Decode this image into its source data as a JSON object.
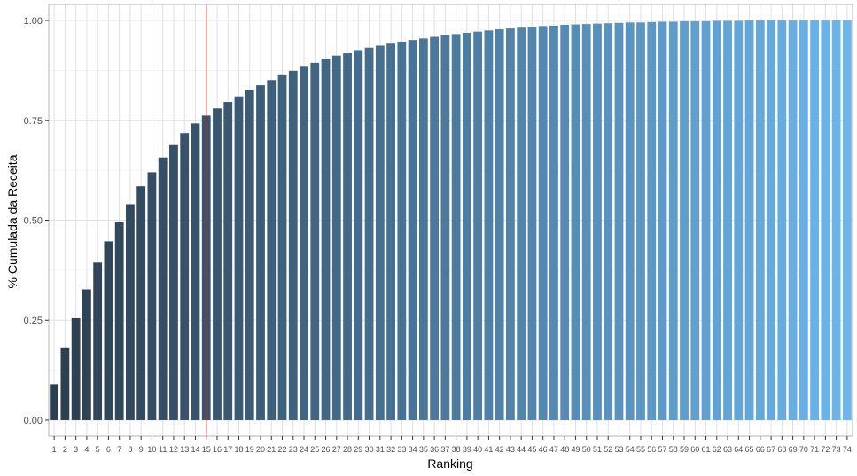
{
  "chart_data": {
    "type": "bar",
    "xlabel": "Ranking",
    "ylabel": "% Cumulada da Receita",
    "ylim": [
      -0.04,
      1.04
    ],
    "yticks": [
      0.0,
      0.25,
      0.5,
      0.75,
      1.0
    ],
    "ytick_labels": [
      "0.00",
      "0.25",
      "0.50",
      "0.75",
      "1.00"
    ],
    "categories": [
      "1",
      "2",
      "3",
      "4",
      "5",
      "6",
      "7",
      "8",
      "9",
      "10",
      "11",
      "12",
      "13",
      "14",
      "15",
      "16",
      "17",
      "18",
      "19",
      "20",
      "21",
      "22",
      "23",
      "24",
      "25",
      "26",
      "27",
      "28",
      "29",
      "30",
      "31",
      "32",
      "33",
      "34",
      "35",
      "36",
      "37",
      "38",
      "39",
      "40",
      "41",
      "42",
      "43",
      "44",
      "45",
      "46",
      "47",
      "48",
      "49",
      "50",
      "51",
      "52",
      "53",
      "54",
      "55",
      "56",
      "57",
      "58",
      "59",
      "60",
      "61",
      "62",
      "63",
      "64",
      "65",
      "66",
      "67",
      "68",
      "69",
      "70",
      "71",
      "72",
      "73",
      "74"
    ],
    "values": [
      0.09,
      0.18,
      0.255,
      0.327,
      0.394,
      0.447,
      0.495,
      0.54,
      0.585,
      0.62,
      0.657,
      0.688,
      0.718,
      0.742,
      0.762,
      0.78,
      0.796,
      0.81,
      0.825,
      0.838,
      0.851,
      0.863,
      0.874,
      0.884,
      0.894,
      0.904,
      0.912,
      0.918,
      0.926,
      0.932,
      0.937,
      0.942,
      0.947,
      0.951,
      0.955,
      0.959,
      0.963,
      0.966,
      0.969,
      0.972,
      0.975,
      0.978,
      0.98,
      0.982,
      0.984,
      0.986,
      0.987,
      0.989,
      0.99,
      0.991,
      0.992,
      0.993,
      0.994,
      0.995,
      0.995,
      0.996,
      0.997,
      0.997,
      0.998,
      0.998,
      0.998,
      0.999,
      0.999,
      0.999,
      1.0,
      1.0,
      1.0,
      1.0,
      1.0,
      1.0,
      1.0,
      1.0,
      1.0,
      1.0
    ],
    "bar_color_start": "#2c3e50",
    "bar_color_end": "#6cb6ec",
    "reference_line": {
      "x": "15",
      "color": "#b22222"
    },
    "grid": true,
    "panel_border_color": "#b3b3b3",
    "grid_color": "#e0e0e0"
  }
}
